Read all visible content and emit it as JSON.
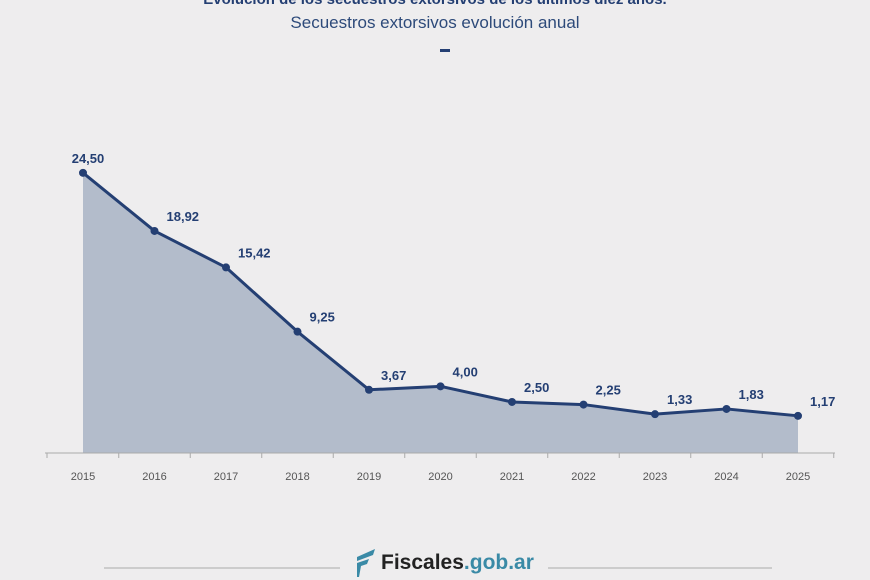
{
  "chart_data": {
    "type": "area",
    "title": "Evolución de los secuestros extorsivos de los últimos diez años.",
    "subtitle": "Secuestros extorsivos evolución anual",
    "categories": [
      "2015",
      "2016",
      "2017",
      "2018",
      "2019",
      "2020",
      "2021",
      "2022",
      "2023",
      "2024",
      "2025"
    ],
    "values": [
      24.5,
      18.92,
      15.42,
      9.25,
      3.67,
      4.0,
      2.5,
      2.25,
      1.33,
      1.83,
      1.17
    ],
    "labels": [
      "24,50",
      "18,92",
      "15,42",
      "9,25",
      "3,67",
      "4,00",
      "2,50",
      "2,25",
      "1,33",
      "1,83",
      "1,17"
    ],
    "xlabel": "",
    "ylabel": "",
    "grid": false,
    "colors": {
      "line": "#243f73",
      "fill": "#b3bccb",
      "background": "#eeedee"
    }
  },
  "footer": {
    "brand": "Fiscales",
    "domain": ".gob.ar"
  }
}
